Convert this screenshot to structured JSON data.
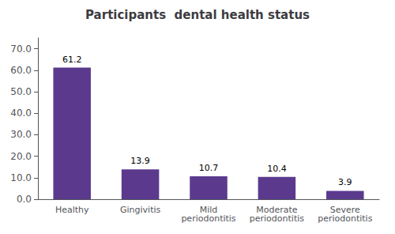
{
  "chart_data": {
    "type": "bar",
    "title": "Participants  dental health status",
    "categories": [
      "Healthy",
      "Gingivitis",
      "Mild\nperiodontitis",
      "Moderate\nperiodontitis",
      "Severe\nperiodontitis"
    ],
    "values": [
      61.2,
      13.9,
      10.7,
      10.4,
      3.9
    ],
    "value_labels": [
      "61.2",
      "13.9",
      "10.7",
      "10.4",
      "3.9"
    ],
    "color": "#5B3A8E",
    "ylim": [
      0,
      75
    ],
    "yticks": [
      {
        "value": 0,
        "label": "0.0"
      },
      {
        "value": 10,
        "label": "10.0"
      },
      {
        "value": 20,
        "label": "20.0"
      },
      {
        "value": 30,
        "label": "30.0"
      },
      {
        "value": 40,
        "label": "40.0"
      },
      {
        "value": 50,
        "label": "50.0"
      },
      {
        "value": 60,
        "label": "60.0"
      },
      {
        "value": 70,
        "label": "70.0"
      }
    ],
    "grid": false,
    "data_labels": true
  }
}
